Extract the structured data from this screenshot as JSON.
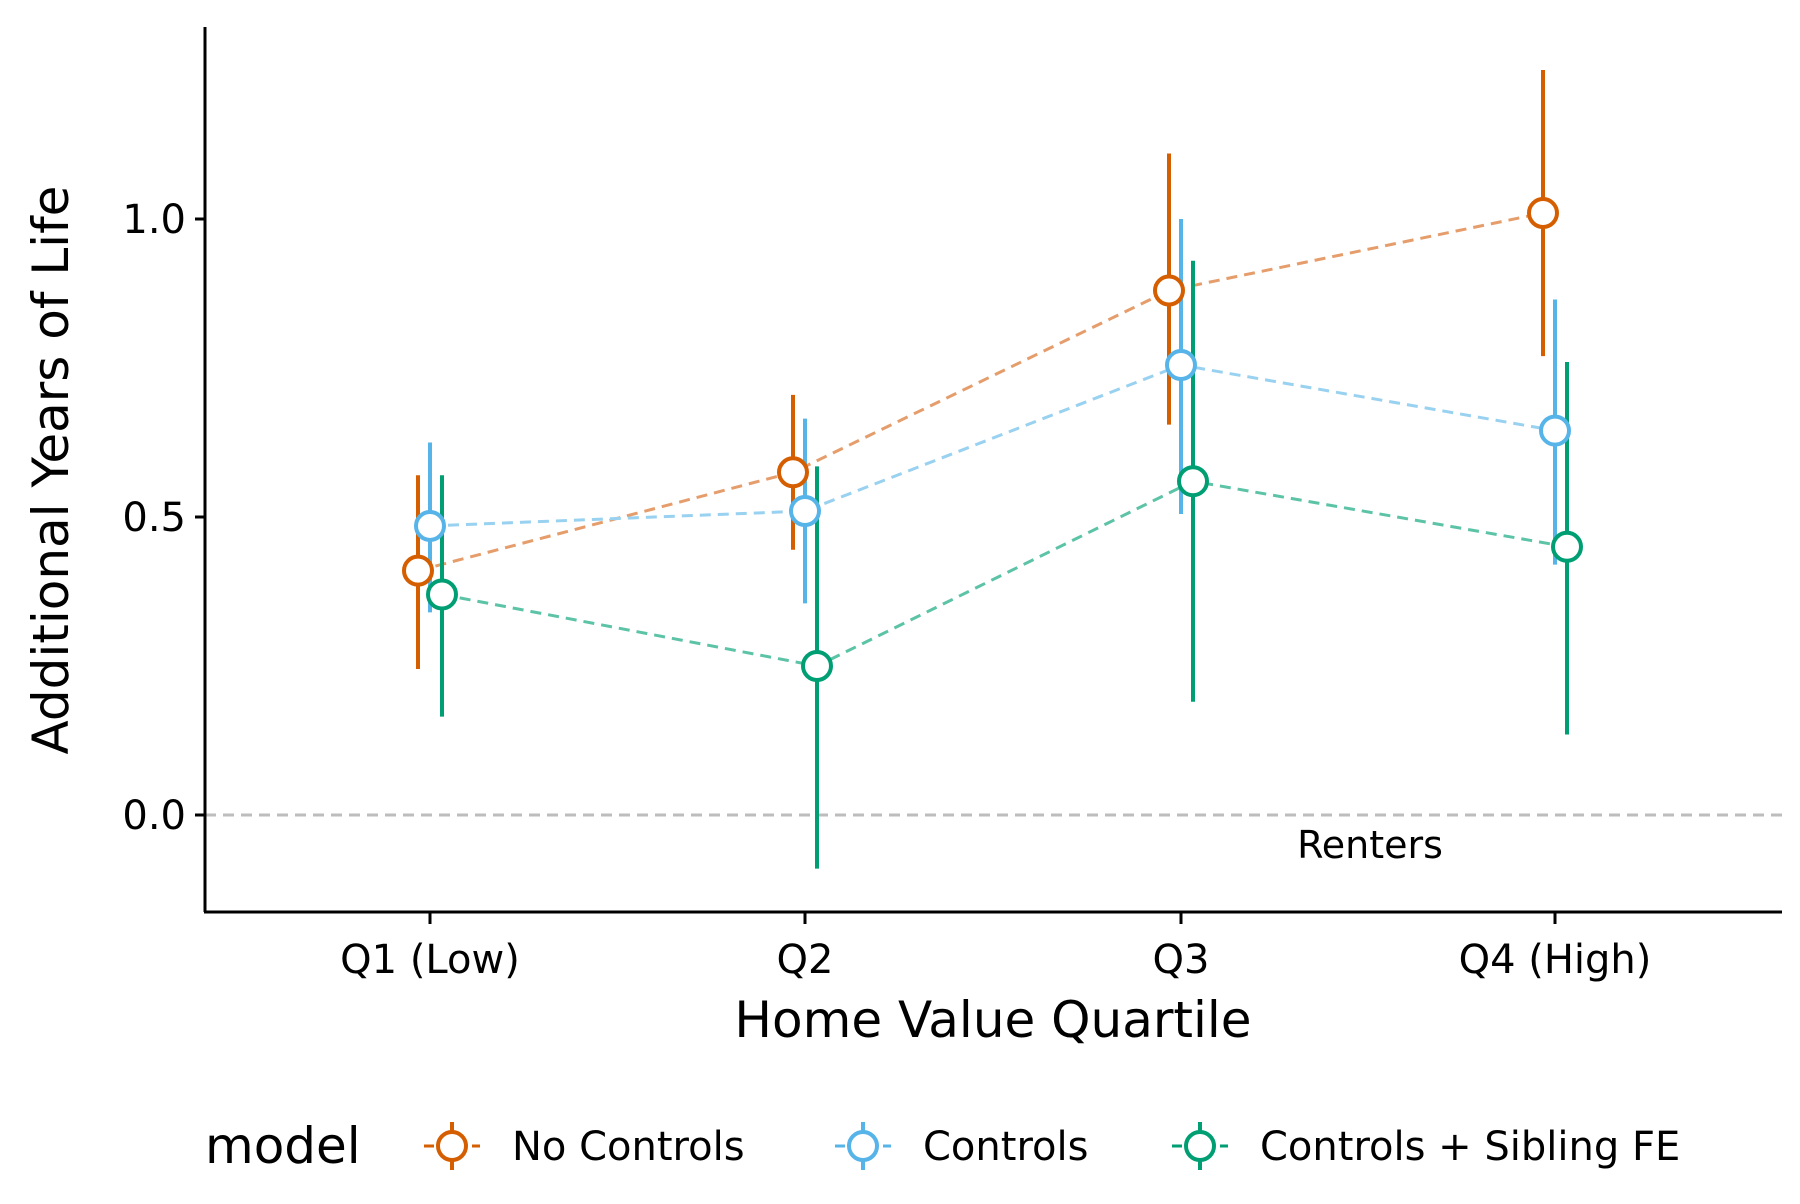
{
  "chart_data": {
    "type": "scatter",
    "variant": "dodged point-range with dashed connecting lines",
    "title": "",
    "xlabel": "Home Value Quartile",
    "ylabel": "Additional Years of Life",
    "categories": [
      "Q1 (Low)",
      "Q2",
      "Q3",
      "Q4 (High)"
    ],
    "ylim": [
      -0.16,
      1.33
    ],
    "yticks": [
      0.0,
      0.5,
      1.0
    ],
    "ytick_labels": [
      "0.0",
      "0.5",
      "1.0"
    ],
    "grid": false,
    "reference_line": {
      "y": 0,
      "style": "dashed",
      "color": "#bdbdbd"
    },
    "annotation": {
      "text": "Renters",
      "x_category": "Q3",
      "y": -0.055
    },
    "legend": {
      "title": "model",
      "position": "bottom"
    },
    "series": [
      {
        "name": "No Controls",
        "color": "#D55E00",
        "line_color": "#E59D6B",
        "values": [
          0.41,
          0.575,
          0.88,
          1.01
        ],
        "lower": [
          0.245,
          0.445,
          0.655,
          0.77
        ],
        "upper": [
          0.57,
          0.705,
          1.11,
          1.25
        ]
      },
      {
        "name": "Controls",
        "color": "#56B4E9",
        "line_color": "#99D1F0",
        "values": [
          0.485,
          0.51,
          0.755,
          0.645
        ],
        "lower": [
          0.34,
          0.355,
          0.505,
          0.42
        ],
        "upper": [
          0.625,
          0.665,
          1.0,
          0.865
        ]
      },
      {
        "name": "Controls + Sibling FE",
        "color": "#009E73",
        "line_color": "#5CC3A6",
        "values": [
          0.37,
          0.25,
          0.56,
          0.45
        ],
        "lower": [
          0.165,
          -0.09,
          0.19,
          0.135
        ],
        "upper": [
          0.57,
          0.585,
          0.93,
          0.76
        ]
      }
    ]
  }
}
